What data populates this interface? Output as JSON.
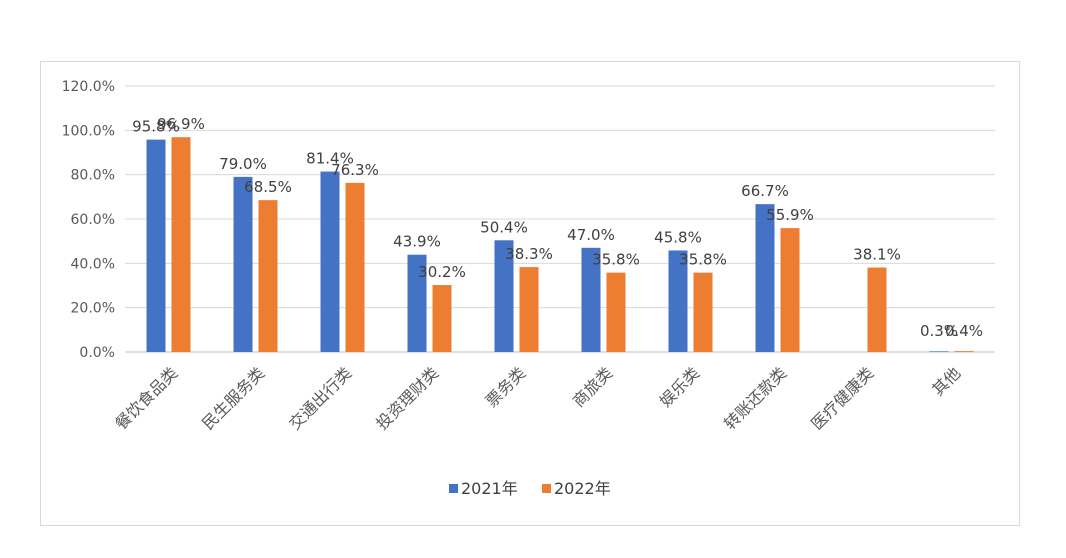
{
  "chart_data": {
    "type": "bar",
    "categories": [
      "餐饮食品类",
      "民生服务类",
      "交通出行类",
      "投资理财类",
      "票务类",
      "商旅类",
      "娱乐类",
      "转账还款类",
      "医疗健康类",
      "其他"
    ],
    "series": [
      {
        "name": "2021年",
        "color": "#4472C4",
        "values": [
          95.8,
          79.0,
          81.4,
          43.9,
          50.4,
          47.0,
          45.8,
          66.7,
          null,
          0.3
        ],
        "labels": [
          "95.8%",
          "79.0%",
          "81.4%",
          "43.9%",
          "50.4%",
          "47.0%",
          "45.8%",
          "66.7%",
          null,
          "0.3%"
        ]
      },
      {
        "name": "2022年",
        "color": "#ED7D31",
        "values": [
          96.9,
          68.5,
          76.3,
          30.2,
          38.3,
          35.8,
          35.8,
          55.9,
          38.1,
          0.4
        ],
        "labels": [
          "96.9%",
          "68.5%",
          "76.3%",
          "30.2%",
          "38.3%",
          "35.8%",
          "35.8%",
          "55.9%",
          "38.1%",
          "0.4%"
        ]
      }
    ],
    "y_ticks": [
      "0.0%",
      "20.0%",
      "40.0%",
      "60.0%",
      "80.0%",
      "100.0%",
      "120.0%"
    ],
    "ylim": [
      0,
      120
    ],
    "grid": true,
    "legend_position": "bottom"
  }
}
